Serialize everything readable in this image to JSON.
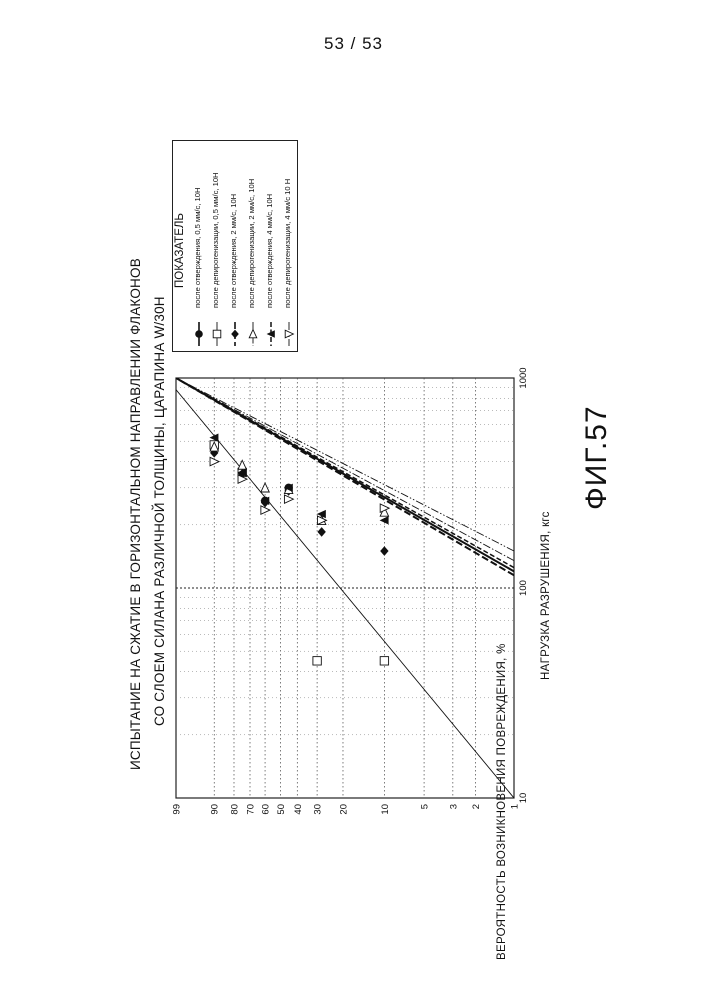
{
  "page_number": "53 / 53",
  "figure_label": "ФИГ.57",
  "chart_data": {
    "type": "scatter",
    "title_lines": [
      "ИСПЫТАНИЕ НА СЖАТИЕ В ГОРИЗОНТАЛЬНОМ НАПРАВЛЕНИИ ФЛАКОНОВ",
      "СО СЛОЕМ СИЛАНА РАЗЛИЧНОЙ ТОЛЩИНЫ, ЦАРАПИНА W/30Н"
    ],
    "xlabel": "НАГРУЗКА РАЗРУШЕНИЯ, кгс",
    "ylabel": "ВЕРОЯТНОСТЬ ВОЗНИКНОВЕНИЯ ПОВРЕЖДЕНИЯ, %",
    "x_scale": "log",
    "y_scale": "weibull-probability",
    "xlim": [
      10,
      1000
    ],
    "ylim": [
      1,
      99
    ],
    "x_ticks": [
      "10",
      "100",
      "1000"
    ],
    "y_ticks": [
      "99",
      "90",
      "80",
      "70",
      "60",
      "50",
      "40",
      "30",
      "20",
      "10",
      "5",
      "3",
      "2",
      "1"
    ],
    "grid": true,
    "legend_title": "ПОКАЗАТЕЛЬ",
    "legend_position": "top-right",
    "series": [
      {
        "name": "после отверждения, 0,5 мм/с, 10Н",
        "marker": "circle",
        "line": "solid-thick",
        "points": [
          [
            460,
            90
          ],
          [
            355,
            75
          ],
          [
            260,
            60
          ],
          [
            300,
            45
          ]
        ],
        "fit": [
          [
            120,
            1
          ],
          [
            1000,
            99
          ]
        ]
      },
      {
        "name": "после депирогенизации, 0,5 мм/с, 10Н",
        "marker": "square",
        "line": "solid-thin",
        "points": [
          [
            480,
            90
          ],
          [
            355,
            75
          ],
          [
            45,
            30
          ],
          [
            45,
            10
          ]
        ],
        "fit": [
          [
            10,
            1
          ],
          [
            880,
            99
          ]
        ]
      },
      {
        "name": "после отверждения, 2 мм/с, 10Н",
        "marker": "diamond",
        "line": "dashed-thick",
        "points": [
          [
            440,
            90
          ],
          [
            350,
            75
          ],
          [
            255,
            60
          ],
          [
            290,
            45
          ],
          [
            185,
            28
          ],
          [
            150,
            10
          ]
        ],
        "fit": [
          [
            115,
            1
          ],
          [
            1000,
            99
          ]
        ]
      },
      {
        "name": "после депирогенизации, 2 мм/с, 10Н",
        "marker": "triangle-open",
        "line": "dash-dot",
        "points": [
          [
            470,
            90
          ],
          [
            385,
            75
          ],
          [
            300,
            60
          ],
          [
            295,
            45
          ],
          [
            210,
            28
          ],
          [
            230,
            10
          ]
        ],
        "fit": [
          [
            135,
            1
          ],
          [
            1000,
            99
          ]
        ]
      },
      {
        "name": "после отверждения, 4 мм/с, 10Н",
        "marker": "triangle",
        "line": "dashed-medium",
        "points": [
          [
            520,
            90
          ],
          [
            355,
            75
          ],
          [
            260,
            60
          ],
          [
            300,
            45
          ],
          [
            225,
            28
          ],
          [
            210,
            10
          ]
        ],
        "fit": [
          [
            125,
            1
          ],
          [
            1000,
            99
          ]
        ]
      },
      {
        "name": "после депирогенизации, 4 мм/с 10 Н",
        "marker": "triangle-down-open",
        "line": "dash-dot-dot",
        "points": [
          [
            400,
            90
          ],
          [
            330,
            75
          ],
          [
            235,
            60
          ],
          [
            265,
            45
          ],
          [
            210,
            28
          ],
          [
            240,
            10
          ]
        ],
        "fit": [
          [
            150,
            1
          ],
          [
            1000,
            99
          ]
        ]
      }
    ]
  }
}
